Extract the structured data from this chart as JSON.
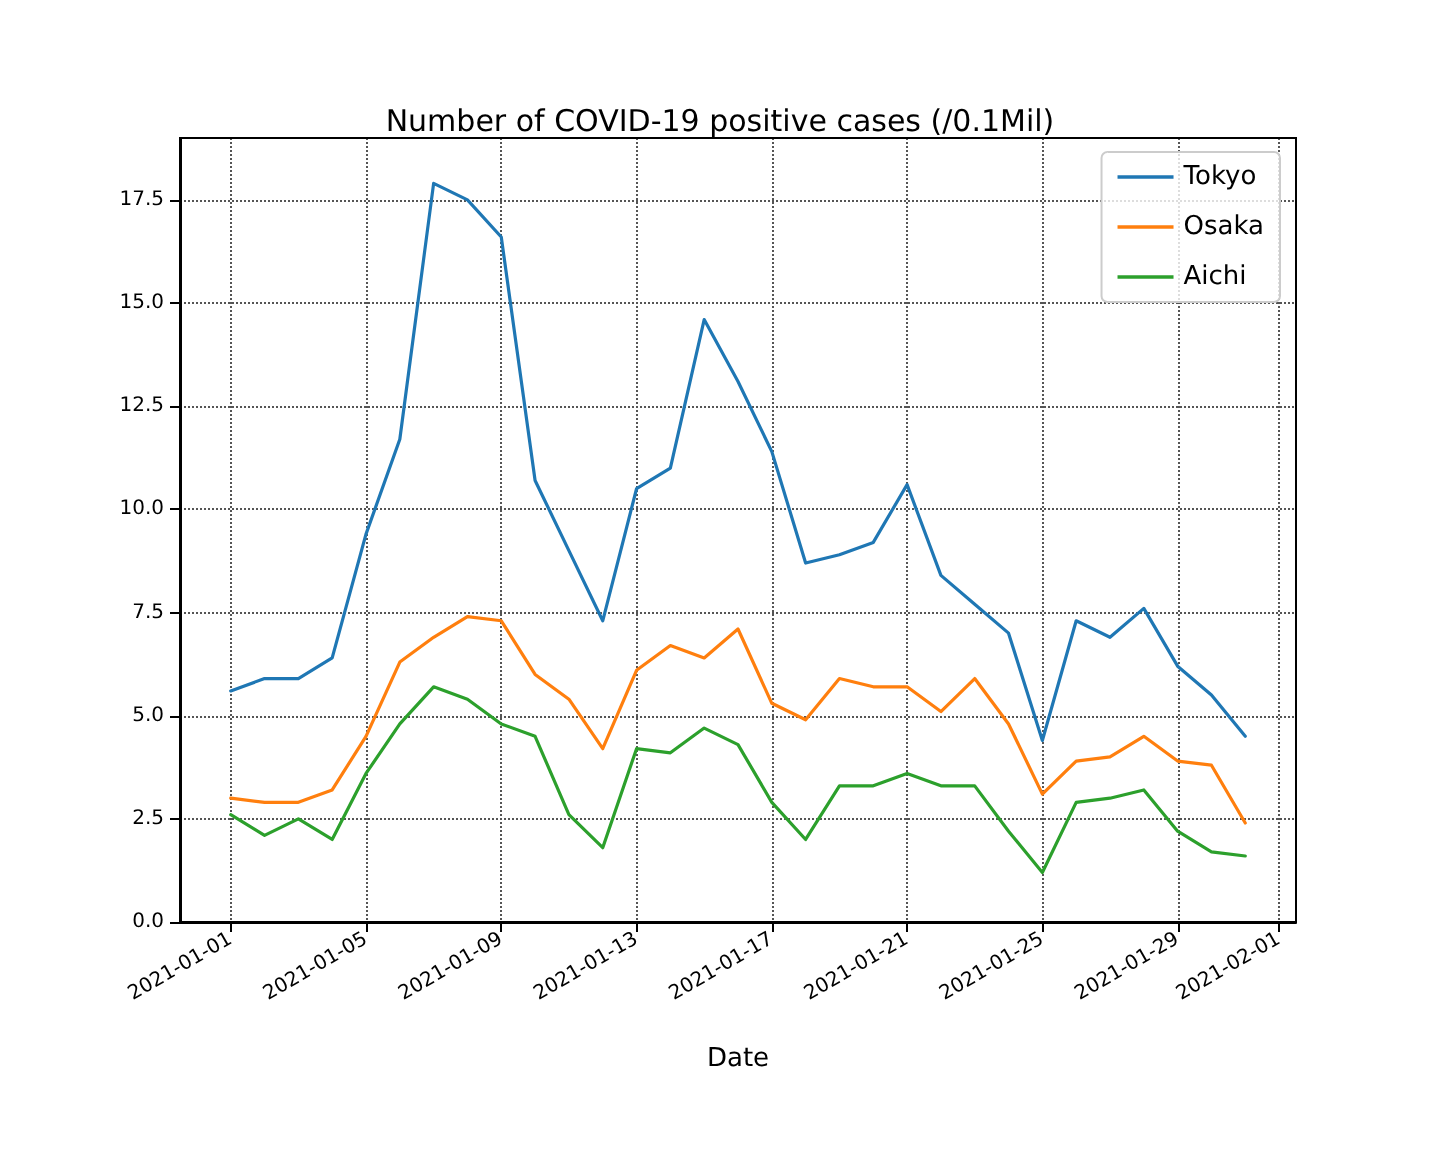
{
  "chart_data": {
    "type": "line",
    "title": "Number of COVID-19 positive cases (/0.1Mil)",
    "xlabel": "Date",
    "x": [
      "2021-01-01",
      "2021-01-02",
      "2021-01-03",
      "2021-01-04",
      "2021-01-05",
      "2021-01-06",
      "2021-01-07",
      "2021-01-08",
      "2021-01-09",
      "2021-01-10",
      "2021-01-11",
      "2021-01-12",
      "2021-01-13",
      "2021-01-14",
      "2021-01-15",
      "2021-01-16",
      "2021-01-17",
      "2021-01-18",
      "2021-01-19",
      "2021-01-20",
      "2021-01-21",
      "2021-01-22",
      "2021-01-23",
      "2021-01-24",
      "2021-01-25",
      "2021-01-26",
      "2021-01-27",
      "2021-01-28",
      "2021-01-29",
      "2021-01-30",
      "2021-01-31"
    ],
    "series": [
      {
        "name": "Tokyo",
        "color": "#1f77b4",
        "values": [
          5.6,
          5.9,
          5.9,
          6.4,
          9.4,
          11.7,
          17.9,
          17.5,
          16.6,
          10.7,
          9.0,
          7.3,
          10.5,
          11.0,
          14.6,
          13.1,
          11.4,
          8.7,
          8.9,
          9.2,
          10.6,
          8.4,
          7.7,
          7.0,
          4.4,
          7.3,
          6.9,
          7.6,
          6.2,
          5.5,
          4.5
        ]
      },
      {
        "name": "Osaka",
        "color": "#ff7f0e",
        "values": [
          3.0,
          2.9,
          2.9,
          3.2,
          4.5,
          6.3,
          6.9,
          7.4,
          7.3,
          6.0,
          5.4,
          4.2,
          6.1,
          6.7,
          6.4,
          7.1,
          5.3,
          4.9,
          5.9,
          5.7,
          5.7,
          5.1,
          5.9,
          4.8,
          3.1,
          3.9,
          4.0,
          4.5,
          3.9,
          3.8,
          2.4
        ]
      },
      {
        "name": "Aichi",
        "color": "#2ca02c",
        "values": [
          2.6,
          2.1,
          2.5,
          2.0,
          3.6,
          4.8,
          5.7,
          5.4,
          4.8,
          4.5,
          2.6,
          1.8,
          4.2,
          4.1,
          4.7,
          4.3,
          2.9,
          2.0,
          3.3,
          3.3,
          3.6,
          3.3,
          3.3,
          2.2,
          1.2,
          2.9,
          3.0,
          3.2,
          2.2,
          1.7,
          1.6
        ]
      }
    ],
    "xlim": [
      "2020-12-30T12:00",
      "2021-02-01T12:00"
    ],
    "xticks": [
      "2021-01-01",
      "2021-01-05",
      "2021-01-09",
      "2021-01-13",
      "2021-01-17",
      "2021-01-21",
      "2021-01-25",
      "2021-01-29",
      "2021-02-01"
    ],
    "ylim": [
      0,
      19
    ],
    "yticks": [
      {
        "value": 0,
        "label": "0.0"
      },
      2.5,
      {
        "value": 5,
        "label": "5.0"
      },
      7.5,
      {
        "value": 10,
        "label": "10.0"
      },
      12.5,
      {
        "value": 15,
        "label": "15.0"
      },
      17.5
    ],
    "grid": true,
    "legend": "top right",
    "marker": "none",
    "line_style": "solid"
  }
}
